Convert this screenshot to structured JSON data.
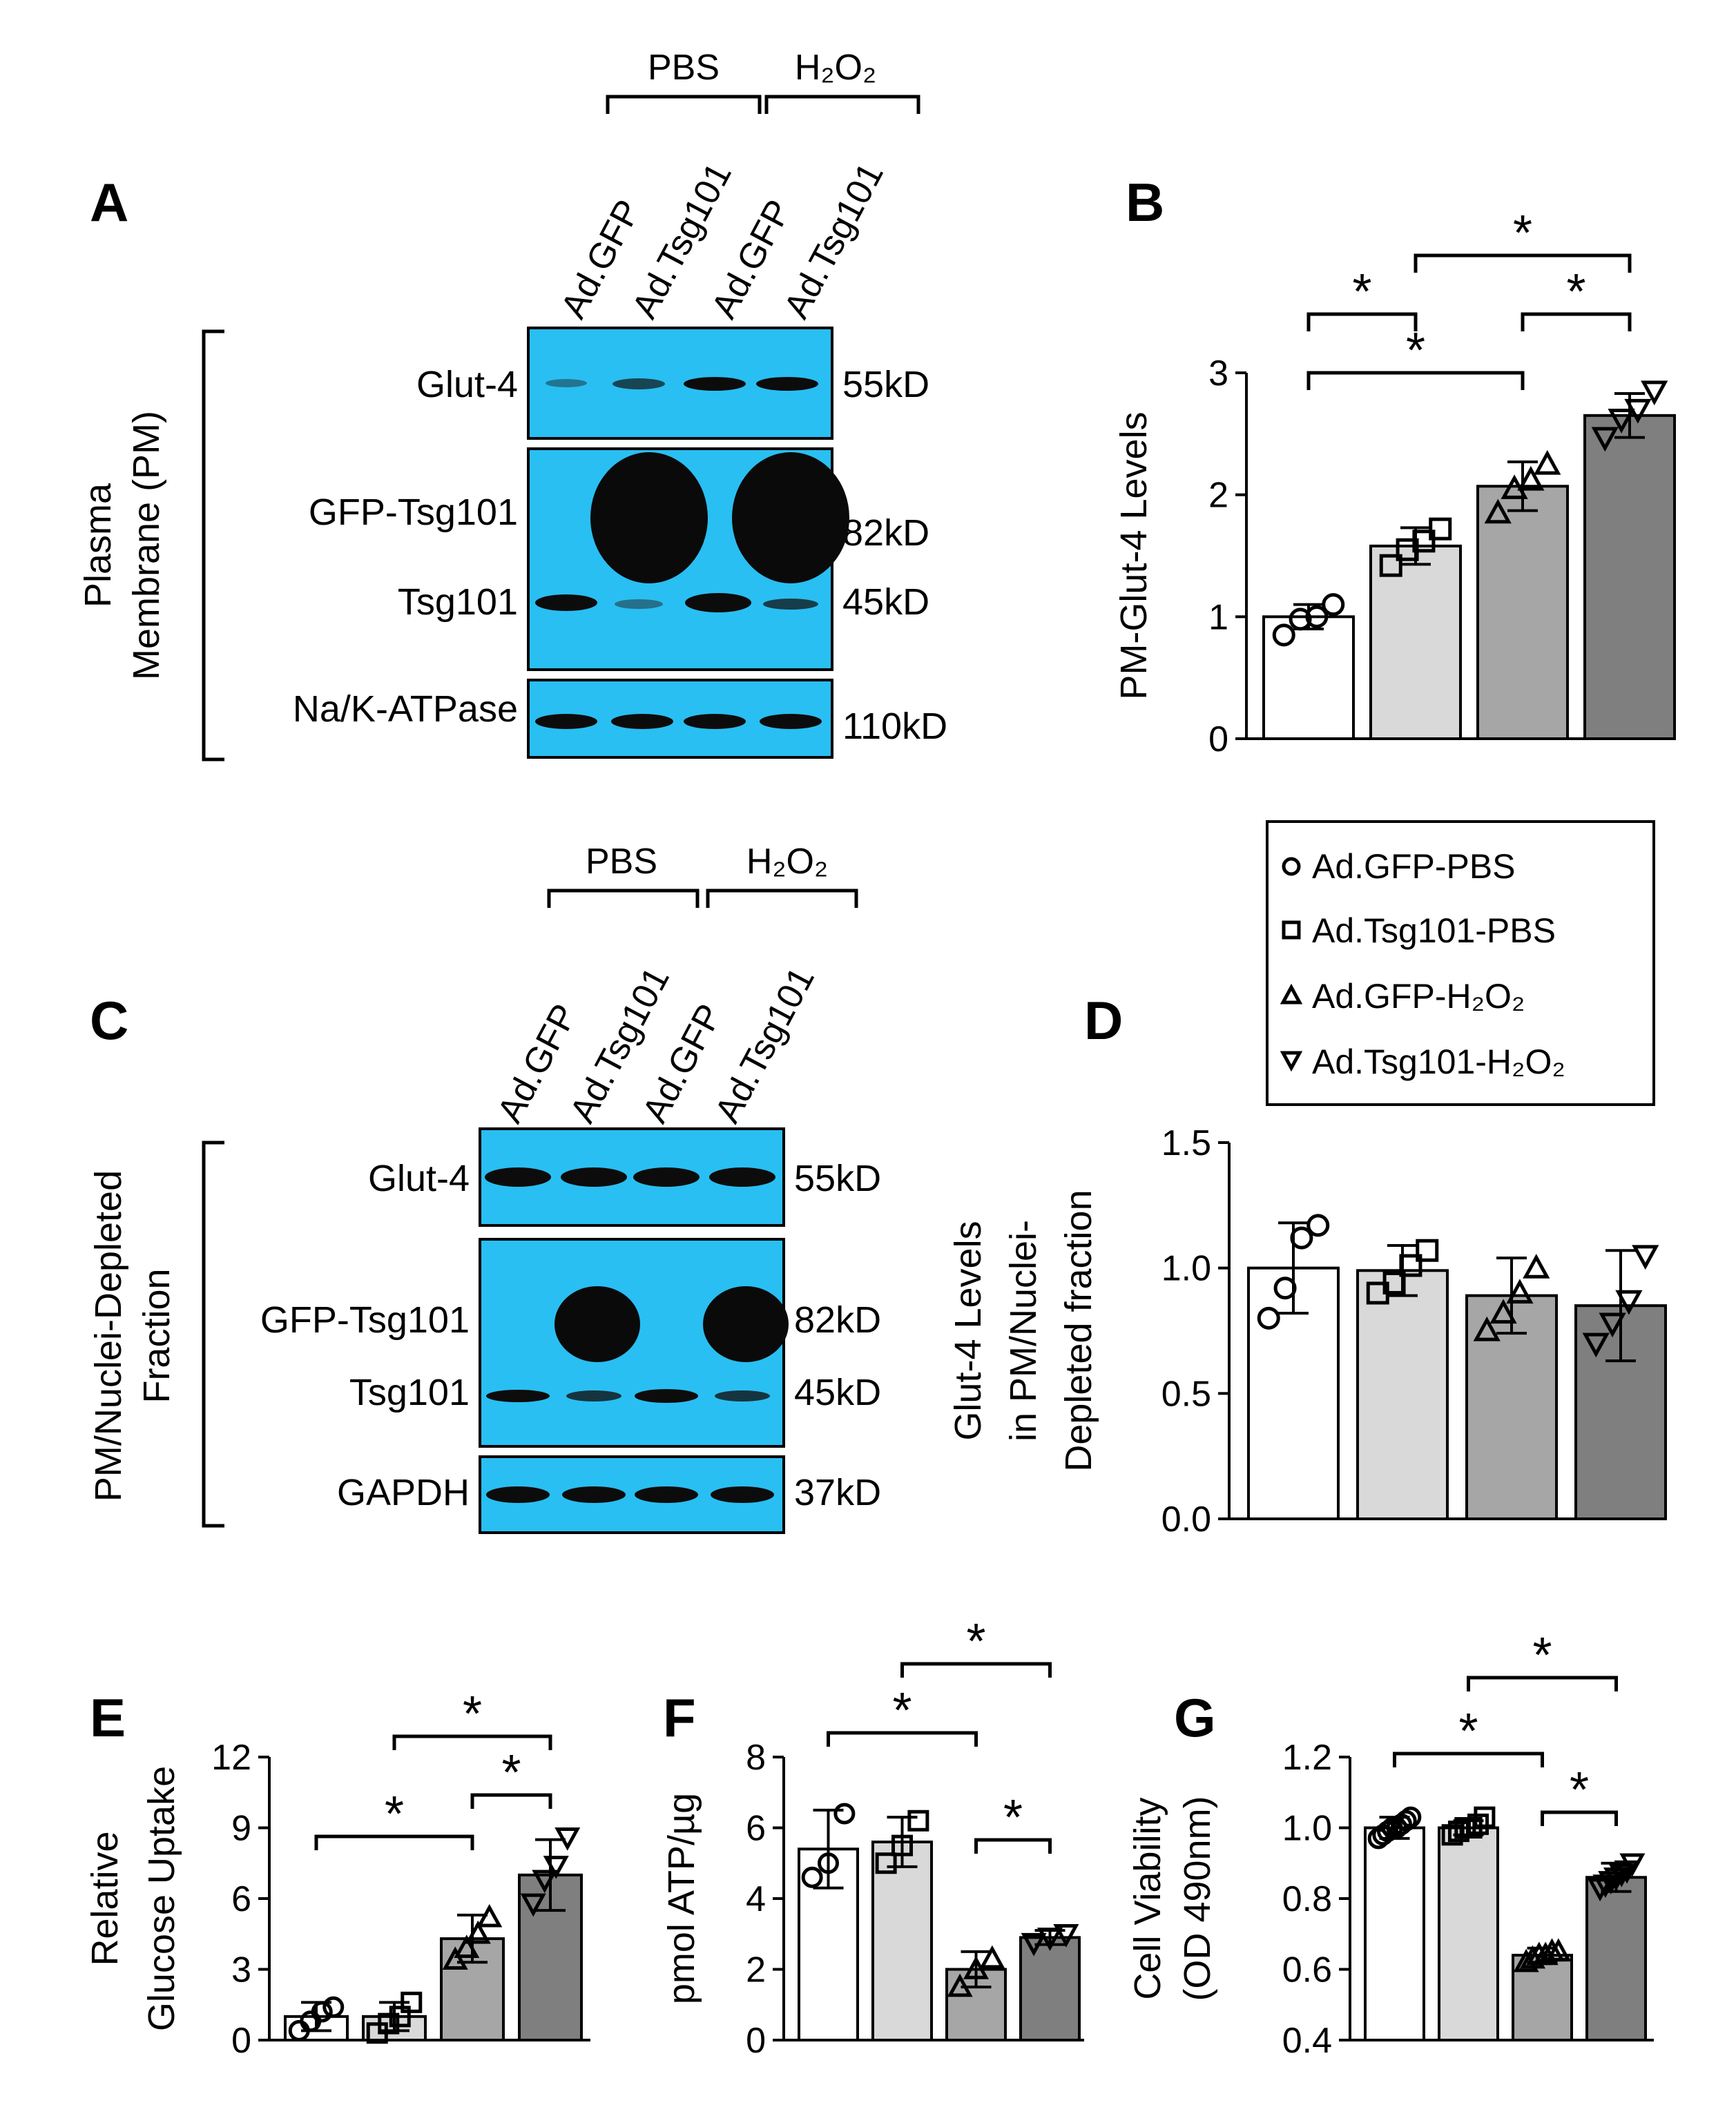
{
  "panel_letters": {
    "A": "A",
    "B": "B",
    "C": "C",
    "D": "D",
    "E": "E",
    "F": "F",
    "G": "G"
  },
  "blot_A": {
    "section_label_line1": "Plasma",
    "section_label_line2": "Membrane (PM)",
    "groups": [
      "PBS",
      "H₂O₂"
    ],
    "lanes": [
      "Ad.GFP",
      "Ad.Tsg101",
      "Ad.GFP",
      "Ad.Tsg101"
    ],
    "row_labels": [
      "Glut-4",
      "GFP-Tsg101",
      "Tsg101",
      "Na/K-ATPase"
    ],
    "sizes": [
      "55kD",
      "82kD",
      "45kD",
      "110kD"
    ]
  },
  "blot_C": {
    "section_label_line1": "PM/Nuclei-Depleted",
    "section_label_line2": "Fraction",
    "groups": [
      "PBS",
      "H₂O₂"
    ],
    "lanes": [
      "Ad.GFP",
      "Ad.Tsg101",
      "Ad.GFP",
      "Ad.Tsg101"
    ],
    "row_labels": [
      "Glut-4",
      "GFP-Tsg101",
      "Tsg101",
      "GAPDH"
    ],
    "sizes": [
      "55kD",
      "82kD",
      "45kD",
      "37kD"
    ]
  },
  "legend": {
    "entries": [
      "Ad.GFP-PBS",
      "Ad.Tsg101-PBS",
      "Ad.GFP-H₂O₂",
      "Ad.Tsg101-H₂O₂"
    ],
    "markers": [
      "circle",
      "square",
      "triangle-up",
      "triangle-down"
    ]
  },
  "colors": {
    "blot_bg": "#29bff2",
    "band": "#101010",
    "bar_fills": [
      "#ffffff",
      "#d9d9d9",
      "#a6a6a6",
      "#7f7f7f"
    ]
  },
  "significance_marker": "*",
  "chart_data": [
    {
      "panel": "B",
      "type": "bar",
      "ylabel": "PM-Glut-4 Levels",
      "ylim": [
        0,
        3
      ],
      "yticks": [
        "0",
        "1",
        "2",
        "3"
      ],
      "categories": [
        "Ad.GFP-PBS",
        "Ad.Tsg101-PBS",
        "Ad.GFP-H₂O₂",
        "Ad.Tsg101-H₂O₂"
      ],
      "values": [
        1.0,
        1.58,
        2.07,
        2.65
      ],
      "errors": [
        0.1,
        0.15,
        0.2,
        0.18
      ],
      "points": [
        [
          0.85,
          0.98,
          1.0,
          1.1
        ],
        [
          1.42,
          1.55,
          1.62,
          1.72
        ],
        [
          1.85,
          2.05,
          2.12,
          2.25
        ],
        [
          2.47,
          2.62,
          2.7,
          2.85
        ]
      ]
    },
    {
      "panel": "D",
      "type": "bar",
      "ylabel_lines": [
        "Glut-4  Levels",
        "in PM/Nuclei-",
        "Depleted fraction"
      ],
      "ylim": [
        0,
        1.5
      ],
      "yticks": [
        "0.0",
        "0.5",
        "1.0",
        "1.5"
      ],
      "categories": [
        "Ad.GFP-PBS",
        "Ad.Tsg101-PBS",
        "Ad.GFP-H₂O₂",
        "Ad.Tsg101-H₂O₂"
      ],
      "values": [
        1.0,
        0.99,
        0.89,
        0.85
      ],
      "errors": [
        0.18,
        0.1,
        0.15,
        0.22
      ],
      "points": [
        [
          0.8,
          0.92,
          1.12,
          1.17
        ],
        [
          0.9,
          0.94,
          1.01,
          1.07
        ],
        [
          0.75,
          0.82,
          0.9,
          1.0
        ],
        [
          0.7,
          0.78,
          0.87,
          1.05
        ]
      ]
    },
    {
      "panel": "E",
      "type": "bar",
      "ylabel_lines": [
        "Relative",
        "Glucose Uptake"
      ],
      "ylim": [
        0,
        12
      ],
      "yticks": [
        "0",
        "3",
        "6",
        "9",
        "12"
      ],
      "categories": [
        "Ad.GFP-PBS",
        "Ad.Tsg101-PBS",
        "Ad.GFP-H₂O₂",
        "Ad.Tsg101-H₂O₂"
      ],
      "values": [
        1.0,
        1.0,
        4.3,
        7.0
      ],
      "errors": [
        0.6,
        0.6,
        1.0,
        1.5
      ],
      "points": [
        [
          0.4,
          0.8,
          1.2,
          1.4
        ],
        [
          0.3,
          0.7,
          1.0,
          1.6
        ],
        [
          3.4,
          3.9,
          4.5,
          5.2
        ],
        [
          5.8,
          6.8,
          7.4,
          8.6
        ]
      ]
    },
    {
      "panel": "F",
      "type": "bar",
      "ylabel": "pmol ATP/µg",
      "ylim": [
        0,
        8
      ],
      "yticks": [
        "0",
        "2",
        "4",
        "6",
        "8"
      ],
      "categories": [
        "Ad.GFP-PBS",
        "Ad.Tsg101-PBS",
        "Ad.GFP-H₂O₂",
        "Ad.Tsg101-H₂O₂"
      ],
      "values": [
        5.4,
        5.6,
        2.0,
        2.9
      ],
      "errors": [
        1.1,
        0.7,
        0.5,
        0.2
      ],
      "points": [
        [
          4.6,
          5.0,
          6.4
        ],
        [
          5.0,
          5.5,
          6.2
        ],
        [
          1.5,
          2.0,
          2.3
        ],
        [
          2.75,
          2.9,
          3.0
        ]
      ]
    },
    {
      "panel": "G",
      "type": "bar",
      "ylabel_lines": [
        "Cell Viability",
        "(OD 490nm)"
      ],
      "ylim": [
        0.4,
        1.2
      ],
      "yticks": [
        "0.4",
        "0.6",
        "0.8",
        "1.0",
        "1.2"
      ],
      "categories": [
        "Ad.GFP-PBS",
        "Ad.Tsg101-PBS",
        "Ad.GFP-H₂O₂",
        "Ad.Tsg101-H₂O₂"
      ],
      "values": [
        1.0,
        1.0,
        0.64,
        0.86
      ],
      "errors": [
        0.03,
        0.02,
        0.02,
        0.04
      ],
      "points": [
        [
          0.97,
          0.98,
          0.99,
          1.0,
          1.0,
          1.01,
          1.02,
          1.03
        ],
        [
          0.98,
          0.99,
          1.0,
          1.0,
          1.01,
          1.03
        ],
        [
          0.62,
          0.63,
          0.64,
          0.64,
          0.65,
          0.65
        ],
        [
          0.83,
          0.84,
          0.85,
          0.86,
          0.87,
          0.88,
          0.9
        ]
      ]
    }
  ]
}
